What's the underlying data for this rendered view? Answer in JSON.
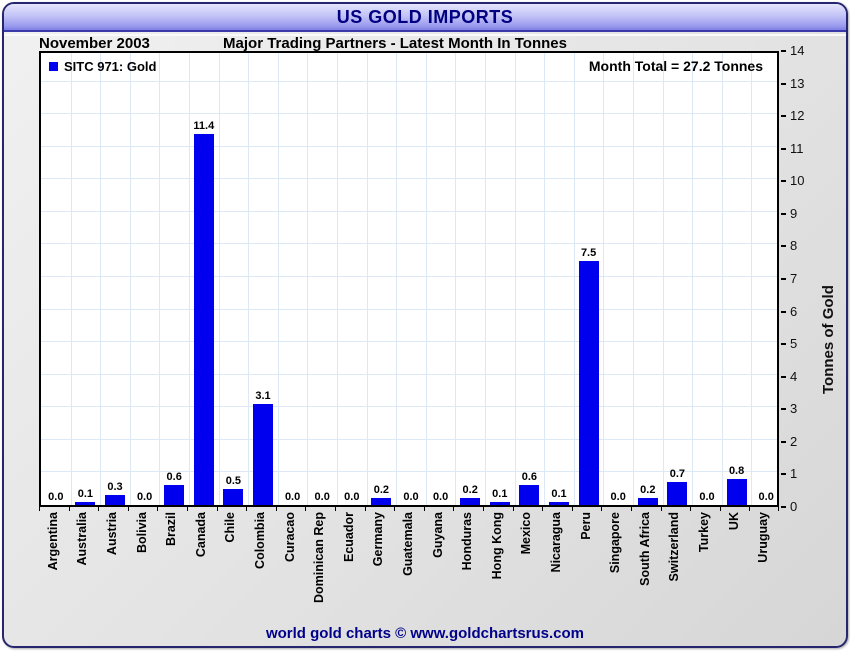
{
  "window": {
    "title": "US GOLD IMPORTS"
  },
  "header": {
    "period": "November 2003",
    "subtitle": "Major Trading Partners - Latest Month In Tonnes"
  },
  "legend": {
    "label": "SITC 971: Gold"
  },
  "annotation": {
    "month_total": "Month Total = 27.2 Tonnes"
  },
  "footer": {
    "credit": "world gold charts © www.goldchartsrus.com"
  },
  "colors": {
    "bar": "#0000ee",
    "title_text": "#000080",
    "footer_text": "#00008b",
    "gridline": "#dce8f5",
    "titlebar_gradient_top": "#e4e4fd",
    "titlebar_gradient_bottom": "#7d7de4"
  },
  "chart_data": {
    "type": "bar",
    "title": "US GOLD IMPORTS",
    "subtitle": "Major Trading Partners - Latest Month In Tonnes",
    "period": "November 2003",
    "series_name": "SITC 971: Gold",
    "month_total_tonnes": 27.2,
    "categories": [
      "Argentina",
      "Australia",
      "Austria",
      "Bolivia",
      "Brazil",
      "Canada",
      "Chile",
      "Colombia",
      "Curacao",
      "Dominican Rep",
      "Ecuador",
      "Germany",
      "Guatemala",
      "Guyana",
      "Honduras",
      "Hong Kong",
      "Mexico",
      "Nicaragua",
      "Peru",
      "Singapore",
      "South Africa",
      "Switzerland",
      "Turkey",
      "UK",
      "Uruguay"
    ],
    "values": [
      0.0,
      0.1,
      0.3,
      0.0,
      0.6,
      11.4,
      0.5,
      3.1,
      0.0,
      0.0,
      0.0,
      0.2,
      0.0,
      0.0,
      0.2,
      0.1,
      0.6,
      0.1,
      7.5,
      0.0,
      0.2,
      0.7,
      0.0,
      0.8,
      0.0
    ],
    "value_labels": [
      "0.0",
      "0.1",
      "0.3",
      "0.0",
      "0.6",
      "11.4",
      "0.5",
      "3.1",
      "0.0",
      "0.0",
      "0.0",
      "0.2",
      "0.0",
      "0.0",
      "0.2",
      "0.1",
      "0.6",
      "0.1",
      "7.5",
      "0.0",
      "0.2",
      "0.7",
      "0.0",
      "0.8",
      "0.0"
    ],
    "xlabel": "",
    "ylabel": "Tonnes of Gold",
    "ylim": [
      0,
      14
    ],
    "ytick_step": 1,
    "grid": true,
    "legend_position": "top-left",
    "bar_color": "#0000ee"
  }
}
